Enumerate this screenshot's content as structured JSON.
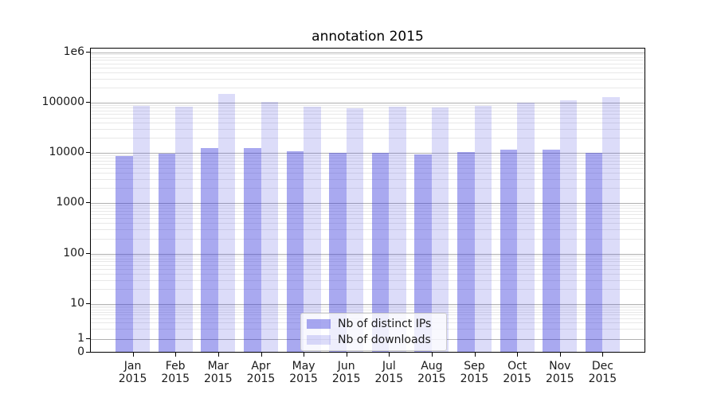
{
  "figure": {
    "title": "annotation 2015",
    "background": "#ffffff"
  },
  "colors": {
    "bar_ips": "rgba(50,50,220,0.42)",
    "bar_downloads": "rgba(50,50,220,0.17)",
    "grid_major": "#b0b0b0",
    "grid_minor": "#e8e8e8",
    "axis": "#000000",
    "text": "#1a1a1a",
    "legend_border": "#cccccc",
    "legend_background": "rgba(255,255,255,0.8)"
  },
  "chart_data": {
    "type": "bar",
    "title": "annotation 2015",
    "yscale": "symlog",
    "ylim": [
      0,
      1000000
    ],
    "grid": true,
    "legend_position": "lower center inside",
    "categories": [
      "Jan 2015",
      "Feb 2015",
      "Mar 2015",
      "Apr 2015",
      "May 2015",
      "Jun 2015",
      "Jul 2015",
      "Aug 2015",
      "Sep 2015",
      "Oct 2015",
      "Nov 2015",
      "Dec 2015"
    ],
    "y_tick_labels": [
      "0",
      "1",
      "10",
      "100",
      "1000",
      "10000",
      "100000",
      "1e6"
    ],
    "y_tick_values": [
      0,
      1,
      10,
      100,
      1000,
      10000,
      100000,
      1000000
    ],
    "series": [
      {
        "name": "Nb of distinct IPs",
        "values": [
          8700,
          9800,
          12300,
          12300,
          10800,
          10000,
          10000,
          9200,
          10400,
          11400,
          11700,
          10000
        ]
      },
      {
        "name": "Nb of downloads",
        "values": [
          85000,
          82000,
          150000,
          103000,
          83000,
          78000,
          82000,
          79000,
          85000,
          101000,
          109000,
          128000
        ]
      }
    ]
  }
}
